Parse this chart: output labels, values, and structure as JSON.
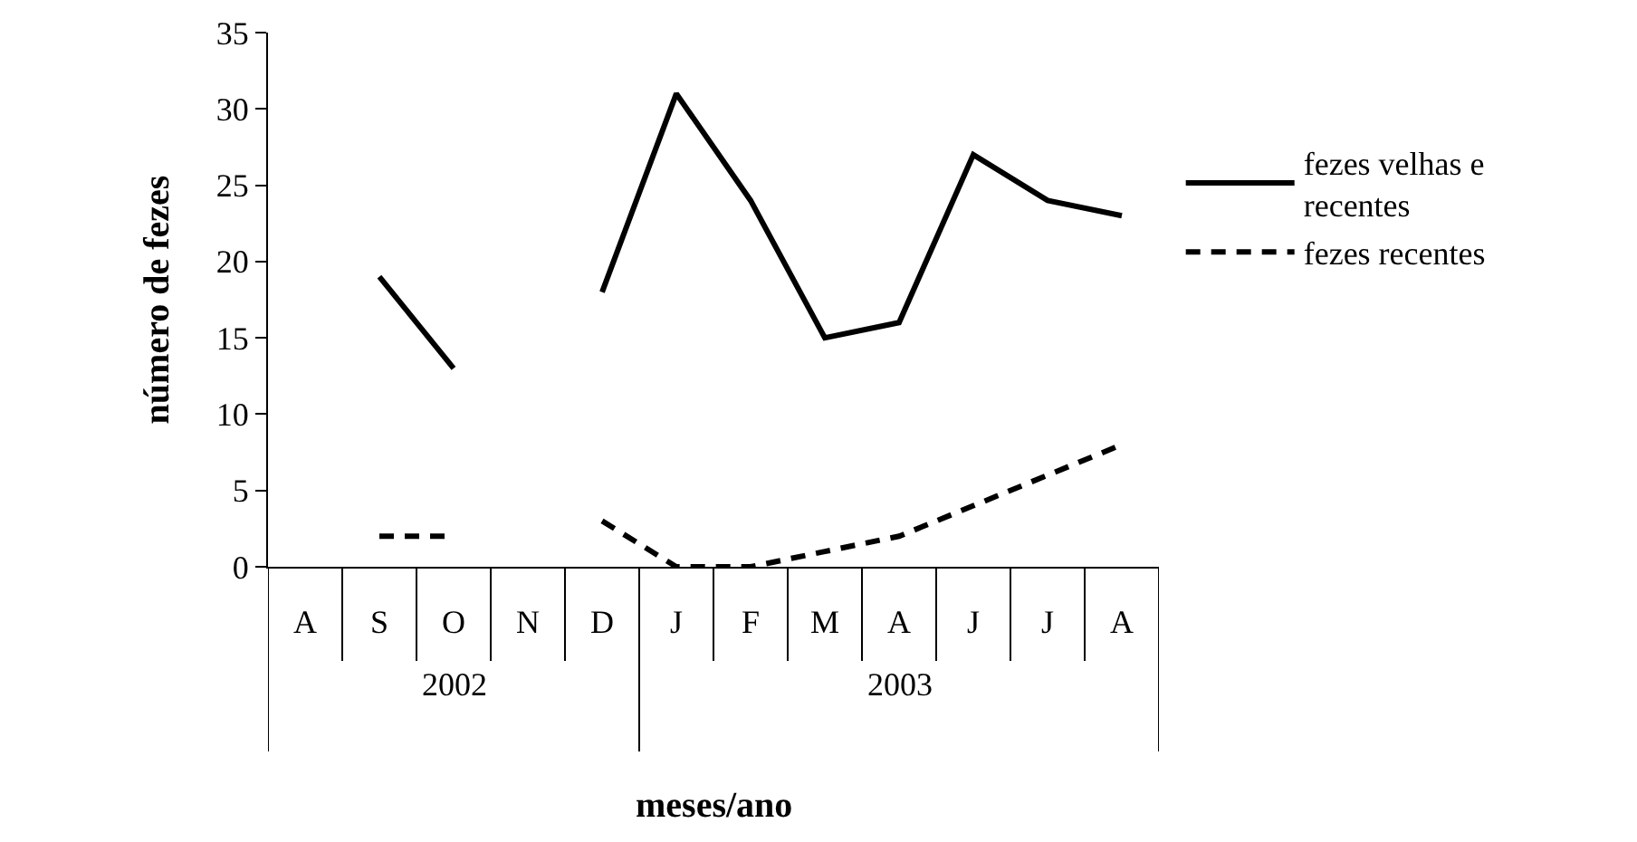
{
  "chart_data": {
    "type": "line",
    "xlabel": "meses/ano",
    "ylabel": "número de fezes",
    "categories": [
      "A",
      "S",
      "O",
      "N",
      "D",
      "J",
      "F",
      "M",
      "A",
      "J",
      "J",
      "A"
    ],
    "series": [
      {
        "name": "fezes velhas e recentes",
        "color": "#000000",
        "line_style": "solid",
        "values": [
          null,
          19,
          13,
          null,
          18,
          31,
          24,
          15,
          16,
          27,
          24,
          23
        ]
      },
      {
        "name": "fezes recentes",
        "color": "#000000",
        "line_style": "dashed",
        "values": [
          null,
          2,
          2,
          null,
          3,
          0,
          0,
          1,
          2,
          4,
          6,
          8
        ]
      }
    ],
    "annotations": [
      "2002",
      "2003"
    ],
    "ylim": [
      0,
      35
    ],
    "yticks": [
      0,
      5,
      10,
      15,
      20,
      25,
      30,
      35
    ],
    "legend": "right",
    "marker": "none"
  }
}
